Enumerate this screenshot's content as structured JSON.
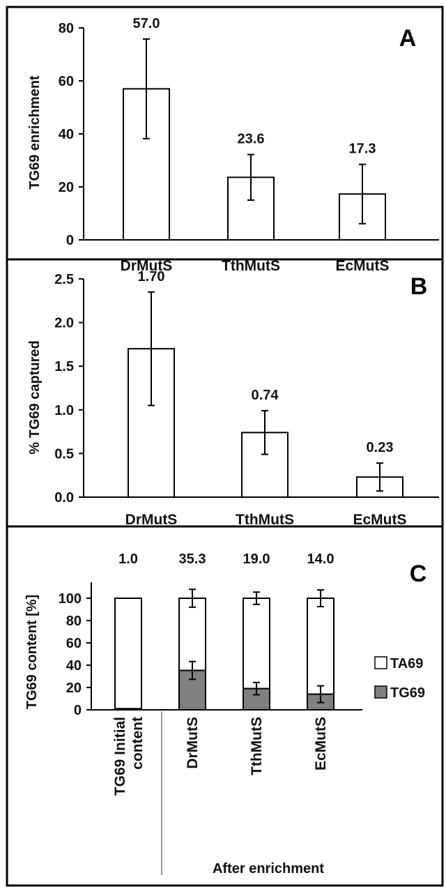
{
  "chart_data": [
    {
      "type": "bar",
      "panel_label": "A",
      "ylabel": "TG69 enrichment",
      "ylim": [
        0,
        80
      ],
      "yticks": [
        0,
        20,
        40,
        60,
        80
      ],
      "categories": [
        "DrMutS",
        "TthMutS",
        "EcMutS"
      ],
      "values": [
        57.0,
        23.6,
        17.3
      ],
      "error": [
        18.8,
        8.6,
        11.2
      ],
      "value_labels": [
        "57.0",
        "23.6",
        "17.3"
      ]
    },
    {
      "type": "bar",
      "panel_label": "B",
      "ylabel": "% TG69 captured",
      "ylim": [
        0,
        2.5
      ],
      "yticks": [
        "0.0",
        "0.5",
        "1.0",
        "1.5",
        "2.0",
        "2.5"
      ],
      "categories": [
        "DrMutS",
        "TthMutS",
        "EcMutS"
      ],
      "values": [
        1.7,
        0.74,
        0.23
      ],
      "error": [
        0.65,
        0.25,
        0.16
      ],
      "value_labels": [
        "1.70",
        "0.74",
        "0.23"
      ]
    },
    {
      "type": "bar",
      "stacked": true,
      "panel_label": "C",
      "ylabel": "TG69 content [%]",
      "ylim": [
        0,
        100
      ],
      "yticks": [
        0,
        20,
        40,
        60,
        80,
        100
      ],
      "categories": [
        "TG69 Initial content",
        "DrMutS",
        "TthMutS",
        "EcMutS"
      ],
      "category_lines": [
        [
          "TG69 Initial",
          "content"
        ],
        [
          "DrMutS"
        ],
        [
          "TthMutS"
        ],
        [
          "EcMutS"
        ]
      ],
      "group_label": "After enrichment",
      "top_labels": [
        "1.0",
        "35.3",
        "19.0",
        "14.0"
      ],
      "series": [
        {
          "name": "TG69",
          "color": "#808080",
          "values": [
            1.0,
            35.3,
            19.0,
            14.0
          ],
          "error": [
            0,
            8,
            5.5,
            7.5
          ]
        },
        {
          "name": "TA69",
          "color": "#ffffff",
          "values": [
            99.0,
            64.7,
            81.0,
            86.0
          ],
          "error": [
            0,
            8,
            5.5,
            7.5
          ]
        }
      ],
      "legend": {
        "position": "right",
        "items": [
          {
            "name": "TA69",
            "color": "#ffffff"
          },
          {
            "name": "TG69",
            "color": "#808080"
          }
        ]
      }
    }
  ]
}
